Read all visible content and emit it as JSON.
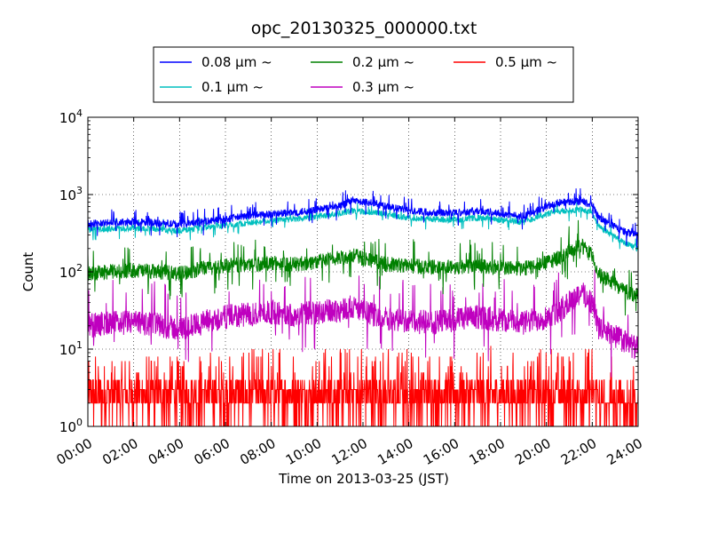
{
  "chart_data": {
    "type": "line",
    "title": "opc_20130325_000000.txt",
    "xlabel": "Time on 2013-03-25 (JST)",
    "ylabel": "Count",
    "yscale": "log",
    "ylim": [
      1,
      10000
    ],
    "xlim": [
      "00:00",
      "24:00"
    ],
    "x_unit": "hour",
    "grid": true,
    "legend_placement": "top-center",
    "x_ticks": [
      "00:00",
      "02:00",
      "04:00",
      "06:00",
      "08:00",
      "10:00",
      "12:00",
      "14:00",
      "16:00",
      "18:00",
      "20:00",
      "22:00",
      "24:00"
    ],
    "y_ticks": [
      {
        "base": "10",
        "exp": "0"
      },
      {
        "base": "10",
        "exp": "1"
      },
      {
        "base": "10",
        "exp": "2"
      },
      {
        "base": "10",
        "exp": "3"
      },
      {
        "base": "10",
        "exp": "4"
      }
    ],
    "x": [
      0,
      1,
      2,
      3,
      4,
      5,
      6,
      7,
      8,
      9,
      10,
      11,
      11.5,
      12,
      12.5,
      13,
      14,
      15,
      16,
      17,
      18,
      19,
      20,
      20.5,
      21,
      21.5,
      22,
      22.3,
      23,
      23.5,
      24
    ],
    "series": [
      {
        "name": "0.08 μm ~",
        "color": "#0000ff",
        "noise": 0.05,
        "values": [
          420,
          430,
          440,
          430,
          410,
          440,
          480,
          530,
          560,
          580,
          640,
          700,
          830,
          800,
          780,
          700,
          620,
          590,
          580,
          610,
          570,
          520,
          700,
          780,
          800,
          830,
          720,
          500,
          380,
          320,
          300
        ]
      },
      {
        "name": "0.1 μm ~",
        "color": "#00bfbf",
        "noise": 0.04,
        "values": [
          350,
          360,
          370,
          360,
          340,
          370,
          400,
          430,
          460,
          480,
          520,
          570,
          620,
          600,
          580,
          560,
          500,
          480,
          470,
          500,
          470,
          440,
          560,
          600,
          620,
          640,
          580,
          380,
          280,
          230,
          200
        ]
      },
      {
        "name": "0.2 μm ~",
        "color": "#008000",
        "noise": 0.1,
        "values": [
          95,
          100,
          105,
          100,
          95,
          110,
          120,
          125,
          130,
          125,
          135,
          150,
          165,
          150,
          140,
          125,
          120,
          115,
          115,
          120,
          115,
          110,
          130,
          150,
          180,
          220,
          160,
          90,
          70,
          55,
          50
        ]
      },
      {
        "name": "0.3 μm ~",
        "color": "#bf00bf",
        "noise": 0.16,
        "values": [
          20,
          22,
          22,
          21,
          18,
          22,
          26,
          28,
          30,
          28,
          30,
          32,
          36,
          30,
          28,
          25,
          23,
          22,
          24,
          26,
          24,
          22,
          26,
          30,
          40,
          55,
          40,
          18,
          15,
          12,
          10
        ]
      },
      {
        "name": "0.5 μm ~",
        "color": "#ff0000",
        "noise": 0.0,
        "values": [
          2,
          2,
          2,
          2,
          2,
          2,
          3,
          3,
          3,
          3,
          3,
          3,
          3,
          3,
          3,
          3,
          3,
          2,
          2,
          3,
          3,
          2,
          3,
          3,
          3,
          3,
          3,
          2,
          2,
          1,
          1
        ]
      }
    ]
  }
}
